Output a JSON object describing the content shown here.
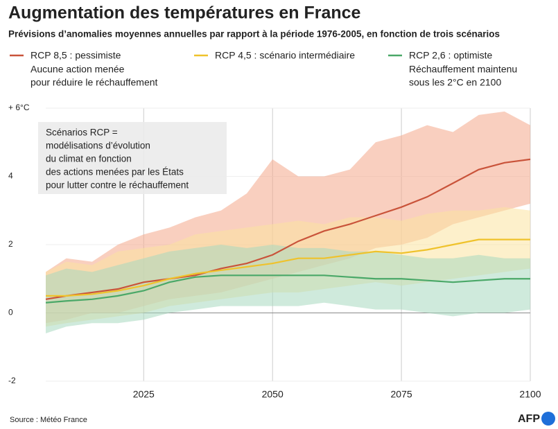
{
  "chart_data": {
    "type": "line",
    "title": "Augmentation des températures en France",
    "subtitle": "Prévisions d’anomalies moyennes annuelles par rapport à la période 1976-2005, en fonction de trois scénarios",
    "annotation": [
      "Scénarios RCP =",
      "modélisations d’évolution",
      "du climat en fonction",
      "des actions menées par les États",
      "pour lutter contre le réchauffement"
    ],
    "source": "Source : Météo France",
    "logo": "AFP",
    "x": [
      2006,
      2010,
      2015,
      2020,
      2025,
      2030,
      2035,
      2040,
      2045,
      2050,
      2055,
      2060,
      2065,
      2070,
      2075,
      2080,
      2085,
      2090,
      2095,
      2100
    ],
    "xlim": [
      2006,
      2100
    ],
    "xticks": [
      2025,
      2050,
      2075,
      2100
    ],
    "ylim": [
      -2,
      6
    ],
    "yticks": [
      -2,
      0,
      2,
      4,
      {
        "value": 6,
        "label": "+ 6°C"
      }
    ],
    "series": [
      {
        "name": "RCP 8,5 : pessimiste",
        "description": [
          "Aucune action menée",
          "pour réduire le réchauffement"
        ],
        "color": "#c9533a",
        "band_color": "#f4a78a",
        "values": [
          0.4,
          0.5,
          0.6,
          0.7,
          0.9,
          1.0,
          1.1,
          1.3,
          1.45,
          1.7,
          2.1,
          2.4,
          2.6,
          2.85,
          3.1,
          3.4,
          3.8,
          4.2,
          4.4,
          4.5
        ],
        "band_high": [
          1.2,
          1.6,
          1.5,
          2.0,
          2.3,
          2.5,
          2.8,
          3.0,
          3.5,
          4.5,
          4.0,
          4.0,
          4.2,
          5.0,
          5.2,
          5.5,
          5.3,
          5.8,
          5.9,
          5.5
        ],
        "band_low": [
          -0.3,
          -0.2,
          0,
          0,
          0.2,
          0.4,
          0.5,
          0.6,
          0.8,
          1.0,
          1.2,
          1.4,
          1.6,
          1.9,
          2.0,
          2.2,
          2.6,
          2.8,
          3.0,
          3.2
        ]
      },
      {
        "name": "RCP 4,5 : scénario intermédiaire",
        "description": [],
        "color": "#efc22b",
        "band_color": "#fbe3a0",
        "values": [
          0.5,
          0.5,
          0.55,
          0.65,
          0.8,
          1.0,
          1.15,
          1.25,
          1.35,
          1.45,
          1.6,
          1.6,
          1.7,
          1.8,
          1.75,
          1.85,
          2.0,
          2.15,
          2.15,
          2.15
        ],
        "band_high": [
          1.2,
          1.5,
          1.4,
          1.8,
          1.9,
          2.0,
          2.3,
          2.4,
          2.5,
          2.6,
          2.7,
          2.6,
          2.8,
          2.8,
          2.7,
          2.9,
          3.0,
          3.0,
          3.1,
          3.0
        ],
        "band_low": [
          -0.4,
          -0.3,
          -0.2,
          -0.1,
          0,
          0.2,
          0.3,
          0.4,
          0.5,
          0.6,
          0.6,
          0.7,
          0.8,
          0.9,
          0.8,
          0.9,
          1.0,
          1.1,
          1.2,
          1.3
        ]
      },
      {
        "name": "RCP 2,6 : optimiste",
        "description": [
          "Réchauffement maintenu",
          "sous les 2°C en 2100"
        ],
        "color": "#4aa868",
        "band_color": "#a8d8c0",
        "values": [
          0.3,
          0.35,
          0.4,
          0.5,
          0.65,
          0.9,
          1.05,
          1.1,
          1.1,
          1.1,
          1.1,
          1.1,
          1.05,
          1.0,
          1.0,
          0.95,
          0.9,
          0.95,
          1.0,
          1.0
        ],
        "band_high": [
          1.1,
          1.3,
          1.2,
          1.4,
          1.6,
          1.8,
          1.9,
          2.0,
          1.9,
          2.0,
          1.9,
          1.9,
          1.8,
          1.8,
          1.7,
          1.6,
          1.6,
          1.7,
          1.6,
          1.6
        ],
        "band_low": [
          -0.6,
          -0.4,
          -0.3,
          -0.3,
          -0.2,
          0,
          0.1,
          0.2,
          0.2,
          0.2,
          0.2,
          0.3,
          0.2,
          0.1,
          0.1,
          0,
          -0.1,
          0,
          0,
          0.1
        ]
      }
    ]
  }
}
